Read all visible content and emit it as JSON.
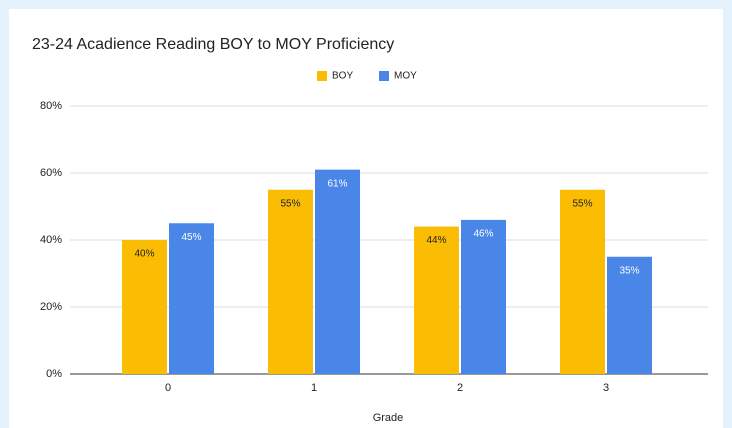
{
  "chart_data": {
    "type": "bar",
    "title": "23-24 Acadience Reading BOY to MOY Proficiency",
    "x_label": "Grade",
    "categories": [
      "0",
      "1",
      "2",
      "3"
    ],
    "series": [
      {
        "name": "BOY",
        "color": "#fbbc04",
        "values": [
          40,
          55,
          44,
          55
        ],
        "value_labels": [
          "40%",
          "55%",
          "44%",
          "55%"
        ]
      },
      {
        "name": "MOY",
        "color": "#4a86e8",
        "values": [
          45,
          61,
          46,
          35
        ],
        "value_labels": [
          "45%",
          "61%",
          "46%",
          "35%"
        ]
      }
    ],
    "ylim": [
      0,
      80
    ],
    "yticks": [
      {
        "value": 0,
        "label": "0%"
      },
      {
        "value": 20,
        "label": "20%"
      },
      {
        "value": 40,
        "label": "40%"
      },
      {
        "value": 60,
        "label": "60%"
      },
      {
        "value": 80,
        "label": "80%"
      }
    ],
    "grid": true,
    "legend": "top"
  }
}
